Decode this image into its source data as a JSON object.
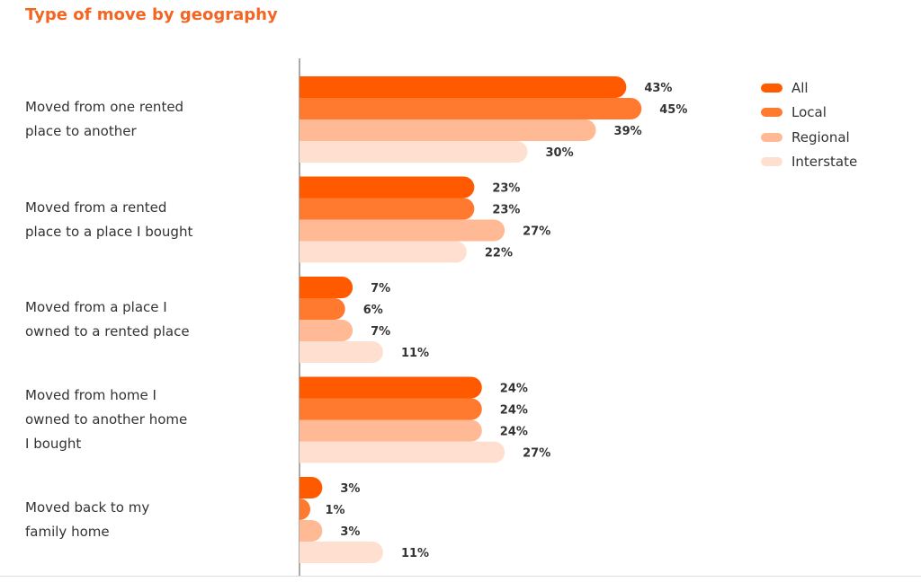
{
  "chart_data": {
    "type": "bar",
    "orientation": "horizontal",
    "title": "Type of move by geography",
    "categories": [
      [
        "Moved from one rented",
        "place to another"
      ],
      [
        "Moved from a rented",
        "place to a place I bought"
      ],
      [
        "Moved from a place I",
        "owned to a rented place"
      ],
      [
        "Moved from home I",
        "owned to another home",
        "I bought"
      ],
      [
        "Moved back to my",
        "family home"
      ]
    ],
    "series": [
      {
        "name": "All",
        "color": "#ff5a00",
        "values": [
          43,
          23,
          7,
          24,
          3
        ]
      },
      {
        "name": "Local",
        "color": "#ff7a2e",
        "values": [
          45,
          23,
          6,
          24,
          1
        ]
      },
      {
        "name": "Regional",
        "color": "#ffb994",
        "values": [
          39,
          27,
          7,
          24,
          3
        ]
      },
      {
        "name": "Interstate",
        "color": "#ffe0d0",
        "values": [
          30,
          22,
          11,
          27,
          11
        ]
      }
    ],
    "value_format": "percent",
    "xlim": [
      0,
      50
    ],
    "grid": false,
    "legend": "top-right"
  }
}
